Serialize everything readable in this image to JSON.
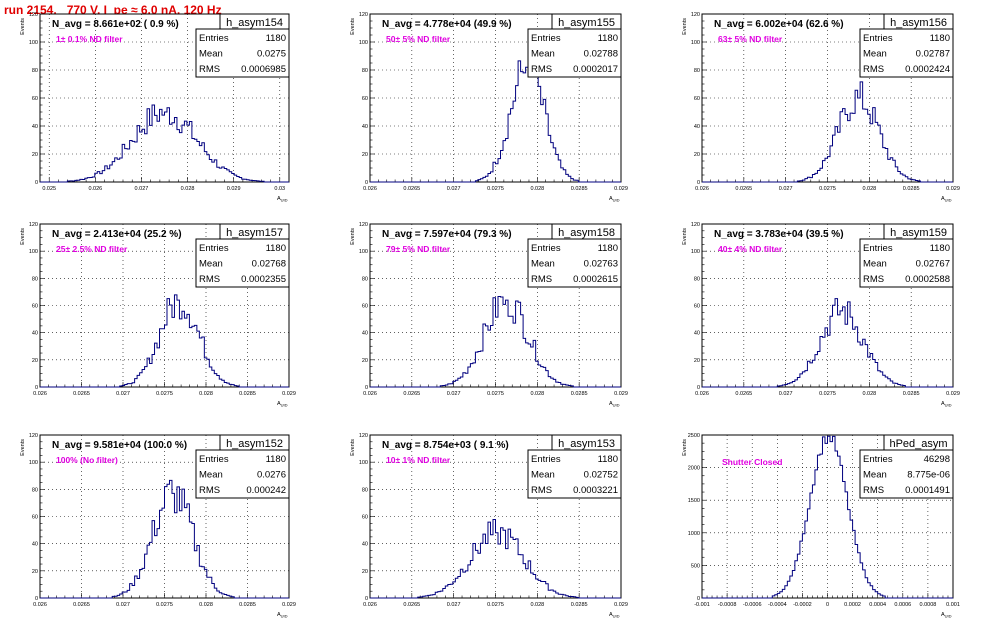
{
  "run_title": "run 2154,   770 V, I_pe ≈ 6.0 nA, 120 Hz",
  "stat_labels": {
    "entries": "Entries",
    "mean": "Mean",
    "rms": "RMS"
  },
  "chart_data": [
    {
      "type": "bar",
      "name": "h_asym154",
      "navg": "N_avg = 8.661e+02 ( 0.9 %)",
      "filter": "1± 0.1% ND filter",
      "entries": "1180",
      "mean": "0.0275",
      "rms": "0.0006985",
      "xlabel": "A_UID",
      "ylabel": "Events",
      "xlim": [
        0.0248,
        0.0302
      ],
      "ylim": [
        0,
        120
      ],
      "xticks": [
        0.025,
        0.026,
        0.027,
        0.028,
        0.029,
        0.03
      ],
      "xticklabels": [
        "0.025",
        "0.026",
        "0.027",
        "0.028",
        "0.029",
        "0.03"
      ],
      "yticks": [
        0,
        20,
        40,
        60,
        80,
        100,
        120
      ],
      "peak": 50
    },
    {
      "type": "bar",
      "name": "h_asym155",
      "navg": "N_avg = 4.778e+04 (49.9 %)",
      "filter": "50± 5% ND filter",
      "entries": "1180",
      "mean": "0.02788",
      "rms": "0.0002017",
      "xlabel": "A_UID",
      "ylabel": "Events",
      "xlim": [
        0.026,
        0.029
      ],
      "ylim": [
        0,
        120
      ],
      "xticks": [
        0.026,
        0.0265,
        0.027,
        0.0275,
        0.028,
        0.0285,
        0.029
      ],
      "xticklabels": [
        "0.026",
        "0.0265",
        "0.027",
        "0.0275",
        "0.028",
        "0.0285",
        "0.029"
      ],
      "yticks": [
        0,
        20,
        40,
        60,
        80,
        100,
        120
      ],
      "peak": 82
    },
    {
      "type": "bar",
      "name": "h_asym156",
      "navg": "N_avg = 6.002e+04 (62.6 %)",
      "filter": "63± 5% ND filter",
      "entries": "1180",
      "mean": "0.02787",
      "rms": "0.0002424",
      "xlabel": "A_UID",
      "ylabel": "Events",
      "xlim": [
        0.026,
        0.029
      ],
      "ylim": [
        0,
        120
      ],
      "xticks": [
        0.026,
        0.0265,
        0.027,
        0.0275,
        0.028,
        0.0285,
        0.029
      ],
      "xticklabels": [
        "0.026",
        "0.0265",
        "0.027",
        "0.0275",
        "0.028",
        "0.0285",
        "0.029"
      ],
      "yticks": [
        0,
        20,
        40,
        60,
        80,
        100,
        120
      ],
      "peak": 60
    },
    {
      "type": "bar",
      "name": "h_asym157",
      "navg": "N_avg = 2.413e+04 (25.2 %)",
      "filter": "25± 2.5% ND filter",
      "entries": "1180",
      "mean": "0.02768",
      "rms": "0.0002355",
      "xlabel": "A_UID",
      "ylabel": "Events",
      "xlim": [
        0.026,
        0.029
      ],
      "ylim": [
        0,
        120
      ],
      "xticks": [
        0.026,
        0.0265,
        0.027,
        0.0275,
        0.028,
        0.0285,
        0.029
      ],
      "xticklabels": [
        "0.026",
        "0.0265",
        "0.027",
        "0.0275",
        "0.028",
        "0.0285",
        "0.029"
      ],
      "yticks": [
        0,
        20,
        40,
        60,
        80,
        100,
        120
      ],
      "peak": 64
    },
    {
      "type": "bar",
      "name": "h_asym158",
      "navg": "N_avg = 7.597e+04 (79.3 %)",
      "filter": "79± 5% ND filter",
      "entries": "1180",
      "mean": "0.02763",
      "rms": "0.0002615",
      "xlabel": "A_UID",
      "ylabel": "Events",
      "xlim": [
        0.026,
        0.029
      ],
      "ylim": [
        0,
        120
      ],
      "xticks": [
        0.026,
        0.0265,
        0.027,
        0.0275,
        0.028,
        0.0285,
        0.029
      ],
      "xticklabels": [
        "0.026",
        "0.0265",
        "0.027",
        "0.0275",
        "0.028",
        "0.0285",
        "0.029"
      ],
      "yticks": [
        0,
        20,
        40,
        60,
        80,
        100,
        120
      ],
      "peak": 64
    },
    {
      "type": "bar",
      "name": "h_asym159",
      "navg": "N_avg = 3.783e+04 (39.5 %)",
      "filter": "40± 4% ND filter",
      "entries": "1180",
      "mean": "0.02767",
      "rms": "0.0002588",
      "xlabel": "A_UID",
      "ylabel": "Events",
      "xlim": [
        0.026,
        0.029
      ],
      "ylim": [
        0,
        120
      ],
      "xticks": [
        0.026,
        0.0265,
        0.027,
        0.0275,
        0.028,
        0.0285,
        0.029
      ],
      "xticklabels": [
        "0.026",
        "0.0265",
        "0.027",
        "0.0275",
        "0.028",
        "0.0285",
        "0.029"
      ],
      "yticks": [
        0,
        20,
        40,
        60,
        80,
        100,
        120
      ],
      "peak": 56
    },
    {
      "type": "bar",
      "name": "h_asym152",
      "navg": "N_avg = 9.581e+04 (100.0 %)",
      "filter": "100% (No filter)",
      "entries": "1180",
      "mean": "0.0276",
      "rms": "0.000242",
      "xlabel": "A_UID",
      "ylabel": "Events",
      "xlim": [
        0.026,
        0.029
      ],
      "ylim": [
        0,
        120
      ],
      "xticks": [
        0.026,
        0.0265,
        0.027,
        0.0275,
        0.028,
        0.0285,
        0.029
      ],
      "xticklabels": [
        "0.026",
        "0.0265",
        "0.027",
        "0.0275",
        "0.028",
        "0.0285",
        "0.029"
      ],
      "yticks": [
        0,
        20,
        40,
        60,
        80,
        100,
        120
      ],
      "peak": 77
    },
    {
      "type": "bar",
      "name": "h_asym153",
      "navg": "N_avg = 8.754e+03 ( 9.1 %)",
      "filter": "10± 1% ND filter",
      "entries": "1180",
      "mean": "0.02752",
      "rms": "0.0003221",
      "xlabel": "A_UID",
      "ylabel": "Events",
      "xlim": [
        0.026,
        0.029
      ],
      "ylim": [
        0,
        120
      ],
      "xticks": [
        0.026,
        0.0265,
        0.027,
        0.0275,
        0.028,
        0.0285,
        0.029
      ],
      "xticklabels": [
        "0.026",
        "0.0265",
        "0.027",
        "0.0275",
        "0.028",
        "0.0285",
        "0.029"
      ],
      "yticks": [
        0,
        20,
        40,
        60,
        80,
        100,
        120
      ],
      "peak": 48
    },
    {
      "type": "bar",
      "name": "hPed_asym",
      "navg": "",
      "filter": "Shutter Closed",
      "entries": "46298",
      "mean": "8.775e-06",
      "rms": "0.0001491",
      "xlabel": "A_UID",
      "ylabel": "Events",
      "xlim": [
        -0.001,
        0.001
      ],
      "ylim": [
        0,
        2500
      ],
      "xticks": [
        -0.001,
        -0.0008,
        -0.0006,
        -0.0004,
        -0.0002,
        0,
        0.0002,
        0.0004,
        0.0006,
        0.0008,
        0.001
      ],
      "xticklabels": [
        "-0.001",
        "-0.0008",
        "-0.0006",
        "-0.0004",
        "-0.0002",
        "0",
        "0.0002",
        "0.0004",
        "0.0006",
        "0.0008",
        "0.001"
      ],
      "yticks": [
        0,
        500,
        1000,
        1500,
        2000,
        2500
      ],
      "peak": 2480
    }
  ],
  "colors": {
    "title": "#e00000",
    "filter_text": "#e000e0",
    "hist_line": "#00007f",
    "grid": "#000000"
  }
}
